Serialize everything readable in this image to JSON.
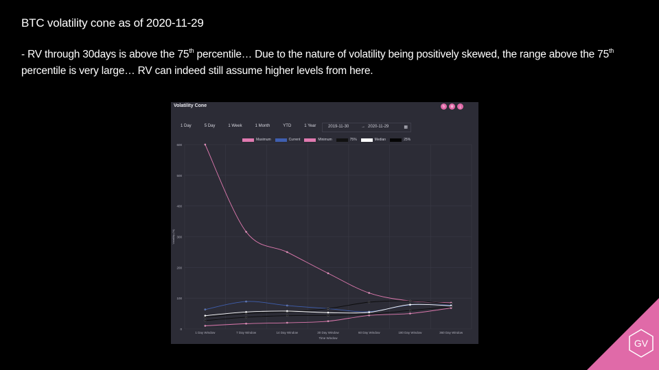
{
  "slide": {
    "title": "BTC volatility cone as of 2020-11-29",
    "body_part1": "- RV through 30days is above the 75",
    "sup1": "th",
    "body_part2": " percentile… Due to the nature of volatility being positively skewed, the range above the 75",
    "sup2": "th",
    "body_part3": " percentile is very large… RV can indeed still assume higher levels from here."
  },
  "panel": {
    "title": "Volatility Cone",
    "icons": [
      "refresh-icon",
      "settings-icon",
      "download-icon"
    ],
    "range_buttons": [
      "1 Day",
      "5 Day",
      "1 Week",
      "1 Month",
      "YTD",
      "1 Year"
    ],
    "date_from": "2019-11-30",
    "date_sep": "→",
    "date_to": "2020-11-29"
  },
  "brand": {
    "logo_text": "GV",
    "color": "#e06aa8"
  },
  "chart_data": {
    "type": "line",
    "categories": [
      "1 Day Window",
      "7 Day Window",
      "14 Day Window",
      "30 Day Window",
      "60 Day Window",
      "180 Day Window",
      "360 Day Window"
    ],
    "xlabel": "Time Window",
    "ylabel": "Volatility (%)",
    "ylim": [
      0,
      600
    ],
    "yticks": [
      0,
      100,
      200,
      300,
      400,
      500,
      600
    ],
    "grid": true,
    "legend_position": "top",
    "series": [
      {
        "name": "Maximum",
        "color": "#e07ab0",
        "values": [
          600,
          316,
          250,
          181,
          117,
          91,
          85
        ]
      },
      {
        "name": "Current",
        "color": "#3f5fb0",
        "values": [
          63,
          89,
          76,
          66,
          56,
          78,
          77
        ]
      },
      {
        "name": "Minimum",
        "color": "#e07ab0",
        "values": [
          10,
          17,
          20,
          25,
          44,
          50,
          68
        ]
      },
      {
        "name": "75%",
        "color": "#111111",
        "values": [
          38,
          50,
          55,
          66,
          87,
          91,
          82
        ]
      },
      {
        "name": "Median",
        "color": "#ffffff",
        "values": [
          43,
          55,
          58,
          53,
          54,
          79,
          75
        ]
      },
      {
        "name": "25%",
        "color": "#050505",
        "values": [
          27,
          38,
          43,
          44,
          48,
          60,
          72
        ]
      }
    ]
  }
}
